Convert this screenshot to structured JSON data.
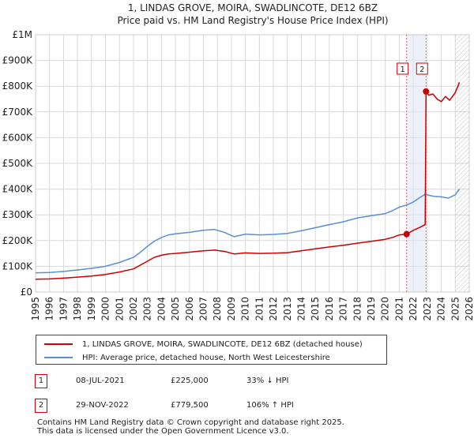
{
  "chart_data": {
    "type": "line",
    "title": "1, LINDAS GROVE, MOIRA, SWADLINCOTE, DE12 6BZ",
    "subtitle": "Price paid vs. HM Land Registry's House Price Index (HPI)",
    "x_range": [
      1995,
      2026
    ],
    "ylim": [
      0,
      1000000
    ],
    "y_ticks": [
      0,
      100000,
      200000,
      300000,
      400000,
      500000,
      600000,
      700000,
      800000,
      900000,
      1000000
    ],
    "y_tick_labels": [
      "£0",
      "£100K",
      "£200K",
      "£300K",
      "£400K",
      "£500K",
      "£600K",
      "£700K",
      "£800K",
      "£900K",
      "£1M"
    ],
    "x_ticks": [
      1995,
      1996,
      1997,
      1998,
      1999,
      2000,
      2001,
      2002,
      2003,
      2004,
      2005,
      2006,
      2007,
      2008,
      2009,
      2010,
      2011,
      2012,
      2013,
      2014,
      2015,
      2016,
      2017,
      2018,
      2019,
      2020,
      2021,
      2022,
      2023,
      2024,
      2025,
      2026
    ],
    "grid": true,
    "forecast_start": 2025.0,
    "series": [
      {
        "name": "1, LINDAS GROVE, MOIRA, SWADLINCOTE, DE12 6BZ (detached house)",
        "color": "#cc0000",
        "x": [
          1995.0,
          1996.0,
          1997.0,
          1998.0,
          1999.0,
          2000.0,
          2001.0,
          2002.0,
          2002.5,
          2003.0,
          2003.5,
          2004.0,
          2004.5,
          2005.0,
          2006.0,
          2007.0,
          2007.8,
          2008.5,
          2009.2,
          2010.0,
          2011.0,
          2012.0,
          2013.0,
          2014.0,
          2015.0,
          2016.0,
          2017.0,
          2018.0,
          2019.0,
          2020.0,
          2020.5,
          2021.0,
          2021.52,
          2022.0,
          2022.5,
          2022.85,
          2022.91,
          2023.1,
          2023.4,
          2023.7,
          2024.0,
          2024.3,
          2024.6,
          2025.0,
          2025.3
        ],
        "values": [
          50000,
          51000,
          54000,
          58000,
          62000,
          68000,
          78000,
          90000,
          105000,
          120000,
          135000,
          143000,
          148000,
          150000,
          155000,
          160000,
          163000,
          158000,
          148000,
          152000,
          150000,
          151000,
          153000,
          160000,
          168000,
          175000,
          182000,
          190000,
          197000,
          205000,
          212000,
          222000,
          225000,
          240000,
          252000,
          262000,
          779500,
          765000,
          770000,
          750000,
          740000,
          760000,
          745000,
          775000,
          815000
        ]
      },
      {
        "name": "HPI: Average price, detached house, North West Leicestershire",
        "color": "#5b8fd0",
        "x": [
          1995.0,
          1996.0,
          1997.0,
          1998.0,
          1999.0,
          2000.0,
          2001.0,
          2002.0,
          2002.5,
          2003.0,
          2003.5,
          2004.0,
          2004.5,
          2005.0,
          2006.0,
          2007.0,
          2007.8,
          2008.5,
          2009.2,
          2010.0,
          2011.0,
          2012.0,
          2013.0,
          2014.0,
          2015.0,
          2016.0,
          2017.0,
          2018.0,
          2019.0,
          2020.0,
          2020.5,
          2021.0,
          2021.52,
          2022.0,
          2022.5,
          2022.85,
          2023.1,
          2023.5,
          2024.0,
          2024.5,
          2025.0,
          2025.3
        ],
        "values": [
          75000,
          76000,
          80000,
          86000,
          92000,
          100000,
          115000,
          135000,
          155000,
          178000,
          198000,
          212000,
          222000,
          226000,
          232000,
          240000,
          243000,
          232000,
          215000,
          225000,
          222000,
          224000,
          228000,
          238000,
          250000,
          262000,
          273000,
          288000,
          297000,
          305000,
          316000,
          330000,
          338000,
          350000,
          368000,
          380000,
          376000,
          372000,
          370000,
          365000,
          378000,
          400000
        ]
      }
    ],
    "annotations": [
      {
        "label": "1",
        "x": 2021.52,
        "y": 225000
      },
      {
        "label": "2",
        "x": 2022.91,
        "y": 779500
      }
    ]
  },
  "legend": {
    "items": [
      {
        "label": "1, LINDAS GROVE, MOIRA, SWADLINCOTE, DE12 6BZ (detached house)",
        "color": "#cc0000"
      },
      {
        "label": "HPI: Average price, detached house, North West Leicestershire",
        "color": "#5b8fd0"
      }
    ]
  },
  "sales": [
    {
      "num": "1",
      "date": "08-JUL-2021",
      "price": "£225,000",
      "hpi": "33% ↓ HPI"
    },
    {
      "num": "2",
      "date": "29-NOV-2022",
      "price": "£779,500",
      "hpi": "106% ↑ HPI"
    }
  ],
  "footer": {
    "line1": "Contains HM Land Registry data © Crown copyright and database right 2025.",
    "line2": "This data is licensed under the Open Government Licence v3.0."
  }
}
